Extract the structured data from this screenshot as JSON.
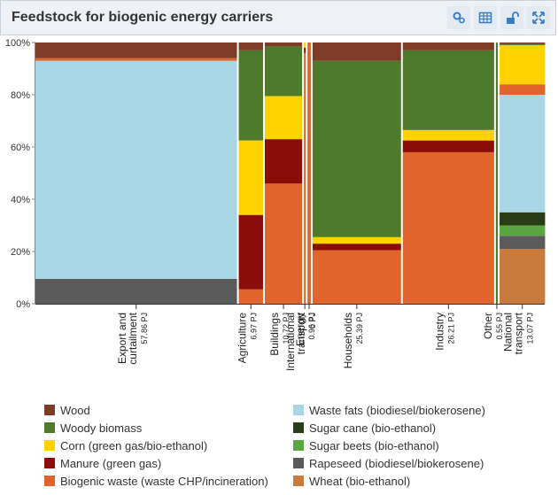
{
  "title": "Feedstock for biogenic energy carriers",
  "toolbar": {
    "icons": [
      "settings-icon",
      "table-icon",
      "unlock-icon",
      "expand-icon"
    ]
  },
  "chart_data": {
    "type": "marimekko",
    "ylim": [
      0,
      100
    ],
    "yticks": [
      "0%",
      "20%",
      "40%",
      "60%",
      "80%",
      "100%"
    ],
    "series": [
      {
        "name": "Wood",
        "color": "#7e3b27"
      },
      {
        "name": "Woody biomass",
        "color": "#4e7a2c"
      },
      {
        "name": "Corn (green gas/bio-ethanol)",
        "color": "#ffd200"
      },
      {
        "name": "Manure (green gas)",
        "color": "#8a0d09"
      },
      {
        "name": "Biogenic waste (waste CHP/incineration)",
        "color": "#e0652d"
      },
      {
        "name": "Waste fats (biodiesel/biokerosene)",
        "color": "#a8d6e5"
      },
      {
        "name": "Sugar cane (bio-ethanol)",
        "color": "#283d17"
      },
      {
        "name": "Sugar beets (bio-ethanol)",
        "color": "#5ba73f"
      },
      {
        "name": "Rapeseed (biodiesel/biokerosene)",
        "color": "#5a5a5a"
      },
      {
        "name": "Wheat (bio-ethanol)",
        "color": "#c97a3d"
      }
    ],
    "categories": [
      {
        "label": [
          "Export and",
          "curtailment"
        ],
        "value_label": "57.86 PJ",
        "value": 57.86,
        "shares": {
          "Rapeseed (biodiesel/biokerosene)": 9.5,
          "Waste fats (biodiesel/biokerosene)": 83.5,
          "Biogenic waste (waste CHP/incineration)": 1,
          "Wood": 6
        }
      },
      {
        "label": [
          "Agriculture"
        ],
        "value_label": "6.97 PJ",
        "value": 6.97,
        "shares": {
          "Biogenic waste (waste CHP/incineration)": 5.5,
          "Manure (green gas)": 28.5,
          "Corn (green gas/bio-ethanol)": 28.5,
          "Woody biomass": 34.5,
          "Wood": 3
        }
      },
      {
        "label": [
          "Buildings"
        ],
        "value_label": "10.72 PJ",
        "value": 10.72,
        "shares": {
          "Biogenic waste (waste CHP/incineration)": 46,
          "Manure (green gas)": 17,
          "Corn (green gas/bio-ethanol)": 16.5,
          "Woody biomass": 19,
          "Wood": 1.5
        }
      },
      {
        "label": [
          "International",
          "transport"
        ],
        "value_label": "0 PJ",
        "value": 0.4,
        "shares": {
          "Biogenic waste (waste CHP/incineration)": 96,
          "Manure (green gas)": 2,
          "Corn (green gas/bio-ethanol)": 2
        }
      },
      {
        "label": [
          "Energy"
        ],
        "value_label": "0.96 PJ",
        "value": 0.96,
        "shares": {
          "Biogenic waste (waste CHP/incineration)": 100
        }
      },
      {
        "label": [
          "Households"
        ],
        "value_label": "25.39 PJ",
        "value": 25.39,
        "shares": {
          "Biogenic waste (waste CHP/incineration)": 20.5,
          "Manure (green gas)": 2.5,
          "Corn (green gas/bio-ethanol)": 2.5,
          "Woody biomass": 67.5,
          "Wood": 7
        }
      },
      {
        "label": [
          "Industry"
        ],
        "value_label": "26.21 PJ",
        "value": 26.21,
        "shares": {
          "Biogenic waste (waste CHP/incineration)": 58,
          "Manure (green gas)": 4.5,
          "Corn (green gas/bio-ethanol)": 4,
          "Woody biomass": 30.5,
          "Wood": 3
        }
      },
      {
        "label": [
          "Other"
        ],
        "value_label": "0.55 PJ",
        "value": 0.55,
        "shares": {
          "Woody biomass": 100
        }
      },
      {
        "label": [
          "National",
          "transport"
        ],
        "value_label": "13.07 PJ",
        "value": 13.07,
        "shares": {
          "Wheat (bio-ethanol)": 21,
          "Rapeseed (biodiesel/biokerosene)": 5,
          "Sugar beets (bio-ethanol)": 4,
          "Sugar cane (bio-ethanol)": 5,
          "Waste fats (biodiesel/biokerosene)": 45,
          "Biogenic waste (waste CHP/incineration)": 4,
          "Corn (green gas/bio-ethanol)": 15,
          "Woody biomass": 0.5,
          "Wood": 0.5
        }
      }
    ],
    "legend_position": "bottom"
  }
}
